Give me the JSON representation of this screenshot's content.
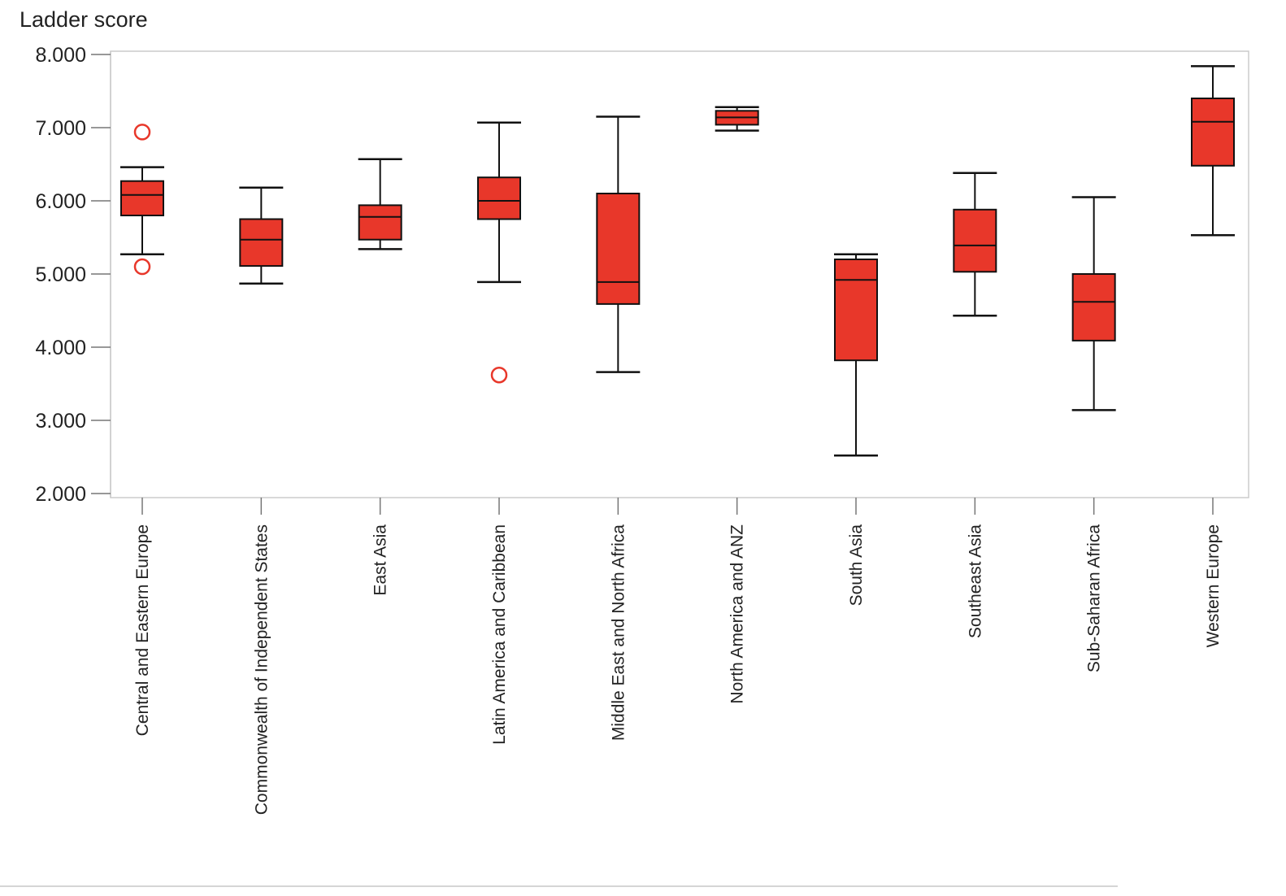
{
  "chart_data": {
    "type": "boxplot",
    "ylabel": "Ladder score",
    "ylim": [
      2.0,
      8.0
    ],
    "yticks": [
      2.0,
      3.0,
      4.0,
      5.0,
      6.0,
      7.0,
      8.0
    ],
    "ytick_labels": [
      "2.000",
      "3.000",
      "4.000",
      "5.000",
      "6.000",
      "7.000",
      "8.000"
    ],
    "grid": false,
    "colors": {
      "box_fill": "#e8372a",
      "outlier": "#e8372a",
      "line": "#111111",
      "frame": "#cccccc"
    },
    "categories": [
      "Central and Eastern Europe",
      "Commonwealth of Independent States",
      "East Asia",
      "Latin America and Caribbean",
      "Middle East and North Africa",
      "North America and ANZ",
      "South Asia",
      "Southeast Asia",
      "Sub-Saharan Africa",
      "Western Europe"
    ],
    "boxes": [
      {
        "whisker_low": 5.27,
        "q1": 5.8,
        "median": 6.08,
        "q3": 6.27,
        "whisker_high": 6.46,
        "outliers": [
          6.94,
          5.1
        ]
      },
      {
        "whisker_low": 4.87,
        "q1": 5.11,
        "median": 5.47,
        "q3": 5.75,
        "whisker_high": 6.18,
        "outliers": []
      },
      {
        "whisker_low": 5.34,
        "q1": 5.47,
        "median": 5.78,
        "q3": 5.94,
        "whisker_high": 6.57,
        "outliers": []
      },
      {
        "whisker_low": 4.89,
        "q1": 5.75,
        "median": 6.0,
        "q3": 6.32,
        "whisker_high": 7.07,
        "outliers": [
          3.62
        ]
      },
      {
        "whisker_low": 3.66,
        "q1": 4.59,
        "median": 4.89,
        "q3": 6.1,
        "whisker_high": 7.15,
        "outliers": []
      },
      {
        "whisker_low": 6.96,
        "q1": 7.04,
        "median": 7.14,
        "q3": 7.23,
        "whisker_high": 7.28,
        "outliers": []
      },
      {
        "whisker_low": 2.52,
        "q1": 3.82,
        "median": 4.92,
        "q3": 5.2,
        "whisker_high": 5.27,
        "outliers": []
      },
      {
        "whisker_low": 4.43,
        "q1": 5.03,
        "median": 5.39,
        "q3": 5.88,
        "whisker_high": 6.38,
        "outliers": []
      },
      {
        "whisker_low": 3.14,
        "q1": 4.09,
        "median": 4.62,
        "q3": 5.0,
        "whisker_high": 6.05,
        "outliers": []
      },
      {
        "whisker_low": 5.53,
        "q1": 6.48,
        "median": 7.08,
        "q3": 7.4,
        "whisker_high": 7.84,
        "outliers": []
      }
    ]
  }
}
